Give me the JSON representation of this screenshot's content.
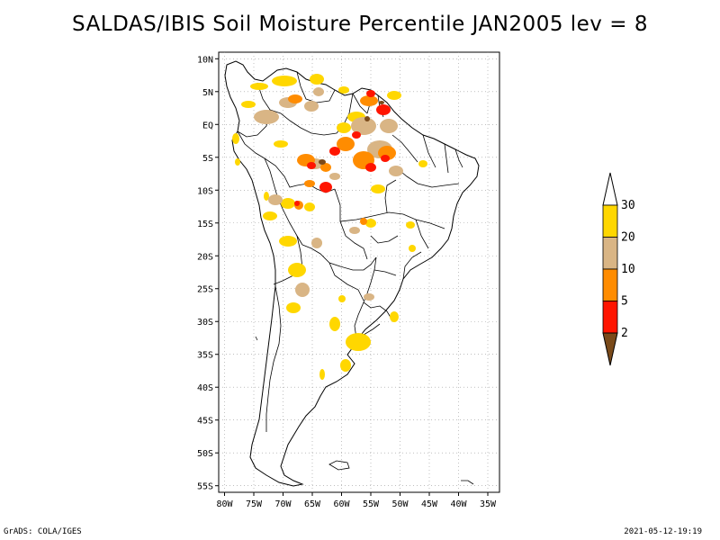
{
  "title": "SALDAS/IBIS Soil Moisture Percentile JAN2005 lev = 8",
  "footer_left": "GrADS: COLA/IGES",
  "footer_right": "2021-05-12-19:19",
  "chart_data": {
    "type": "heatmap",
    "title": "SALDAS/IBIS Soil Moisture Percentile JAN2005 lev = 8",
    "x_ticks": [
      "80W",
      "75W",
      "70W",
      "65W",
      "60W",
      "55W",
      "50W",
      "45W",
      "40W",
      "35W"
    ],
    "x_values": [
      -80,
      -75,
      -70,
      -65,
      -60,
      -55,
      -50,
      -45,
      -40,
      -35
    ],
    "y_ticks": [
      "10N",
      "5N",
      "EQ",
      "5S",
      "10S",
      "15S",
      "20S",
      "25S",
      "30S",
      "35S",
      "40S",
      "45S",
      "50S",
      "55S"
    ],
    "y_values": [
      10,
      5,
      0,
      -5,
      -10,
      -15,
      -20,
      -25,
      -30,
      -35,
      -40,
      -45,
      -50,
      -55
    ],
    "xlim": [
      -81,
      -33
    ],
    "ylim": [
      -56,
      11
    ],
    "grid": true,
    "legend": {
      "placement": "right",
      "bins": [
        {
          "color": "#7a4a1a",
          "range": "< 2"
        },
        {
          "color": "#ff1500",
          "range": "2-5"
        },
        {
          "color": "#ff8c00",
          "range": "5-10"
        },
        {
          "color": "#d9b585",
          "range": "10-20"
        },
        {
          "color": "#ffd700",
          "range": "20-30"
        },
        {
          "color": "#ffffff",
          "range": "> 30"
        }
      ],
      "labels": [
        "2",
        "5",
        "10",
        "20",
        "30"
      ]
    },
    "colors": {
      "lt2": "#7a4a1a",
      "p2_5": "#ff1500",
      "p5_10": "#ff8c00",
      "p10_20": "#d9b585",
      "p20_30": "#ffd700"
    }
  }
}
